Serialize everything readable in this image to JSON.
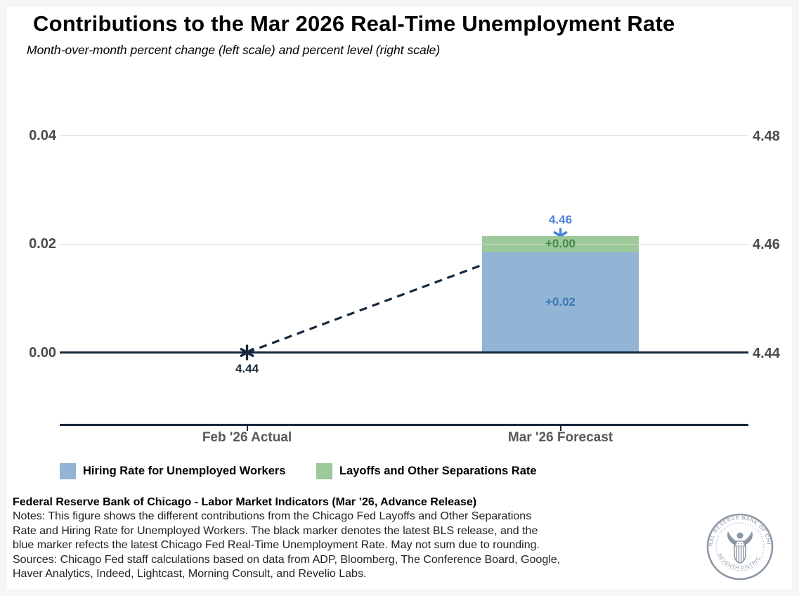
{
  "header": {
    "title": "Contributions to the Mar 2026 Real-Time Unemployment Rate",
    "subtitle": "Month-over-month percent change (left scale) and percent level (right scale)"
  },
  "chart_data": {
    "type": "bar",
    "title": "Contributions to the Mar 2026 Real-Time Unemployment Rate",
    "subtitle": "Month-over-month percent change (left scale) and percent level (right scale)",
    "categories": [
      "Feb '26 Actual",
      "Mar '26 Forecast"
    ],
    "axes": {
      "base_level": 4.44,
      "left_range": [
        -0.004,
        0.045
      ],
      "grid": true,
      "ticks": [
        {
          "delta": 0.0,
          "left_label": "0.00",
          "right_label": "4.44",
          "zero": true
        },
        {
          "delta": 0.02,
          "left_label": "0.02",
          "right_label": "4.46",
          "zero": false
        },
        {
          "delta": 0.04,
          "left_label": "0.04",
          "right_label": "4.48",
          "zero": false
        }
      ]
    },
    "bars": [
      {
        "series": "Hiring Rate for Unemployed Workers",
        "category_index": 1,
        "start": 0.0,
        "end": 0.0185,
        "value_label": "+0.02",
        "color": "#92b5d6",
        "label_color": "#3a77b8"
      },
      {
        "series": "Layoffs and Other Separations Rate",
        "category_index": 1,
        "start": 0.0185,
        "end": 0.0215,
        "value_label": "+0.00",
        "color": "#9dc899",
        "label_color": "#3e8c48"
      }
    ],
    "markers": [
      {
        "category_index": 0,
        "level": 4.44,
        "label": "4.44",
        "label_side": "below",
        "color": "#15283d"
      },
      {
        "category_index": 1,
        "level": 4.4615,
        "label": "4.46",
        "label_side": "above",
        "color": "#4a80db"
      }
    ],
    "connector": {
      "style": "dashed",
      "color": "#15283d",
      "from_marker": 0,
      "to_marker": 1
    }
  },
  "legend": {
    "items": [
      {
        "label": "Hiring Rate for Unemployed Workers",
        "color": "#92b5d6"
      },
      {
        "label": "Layoffs and Other Separations Rate",
        "color": "#9dc899"
      }
    ]
  },
  "footer": {
    "heading": "Federal Reserve Bank of Chicago - Labor Market Indicators (Mar ’26, Advance Release)",
    "lines": [
      "Notes: This figure shows the different contributions from the Chicago Fed Layoffs and Other Separations",
      "Rate and Hiring Rate for Unemployed Workers. The black marker denotes the latest BLS release, and the",
      "blue marker refects the latest Chicago Fed Real-Time Unemployment Rate. May not sum due to rounding.",
      "Sources: Chicago Fed staff calculations based on data from ADP, Bloomberg, The Conference Board, Google,",
      "Haver Analytics, Indeed, Lightcast, Morning Consult, and Revelio Labs."
    ]
  },
  "logo": {
    "arc_top": "FEDERAL RESERVE BANK OF CHICAGO",
    "arc_bottom": "SEVENTH DISTRICT",
    "color": "#8c98a6"
  }
}
